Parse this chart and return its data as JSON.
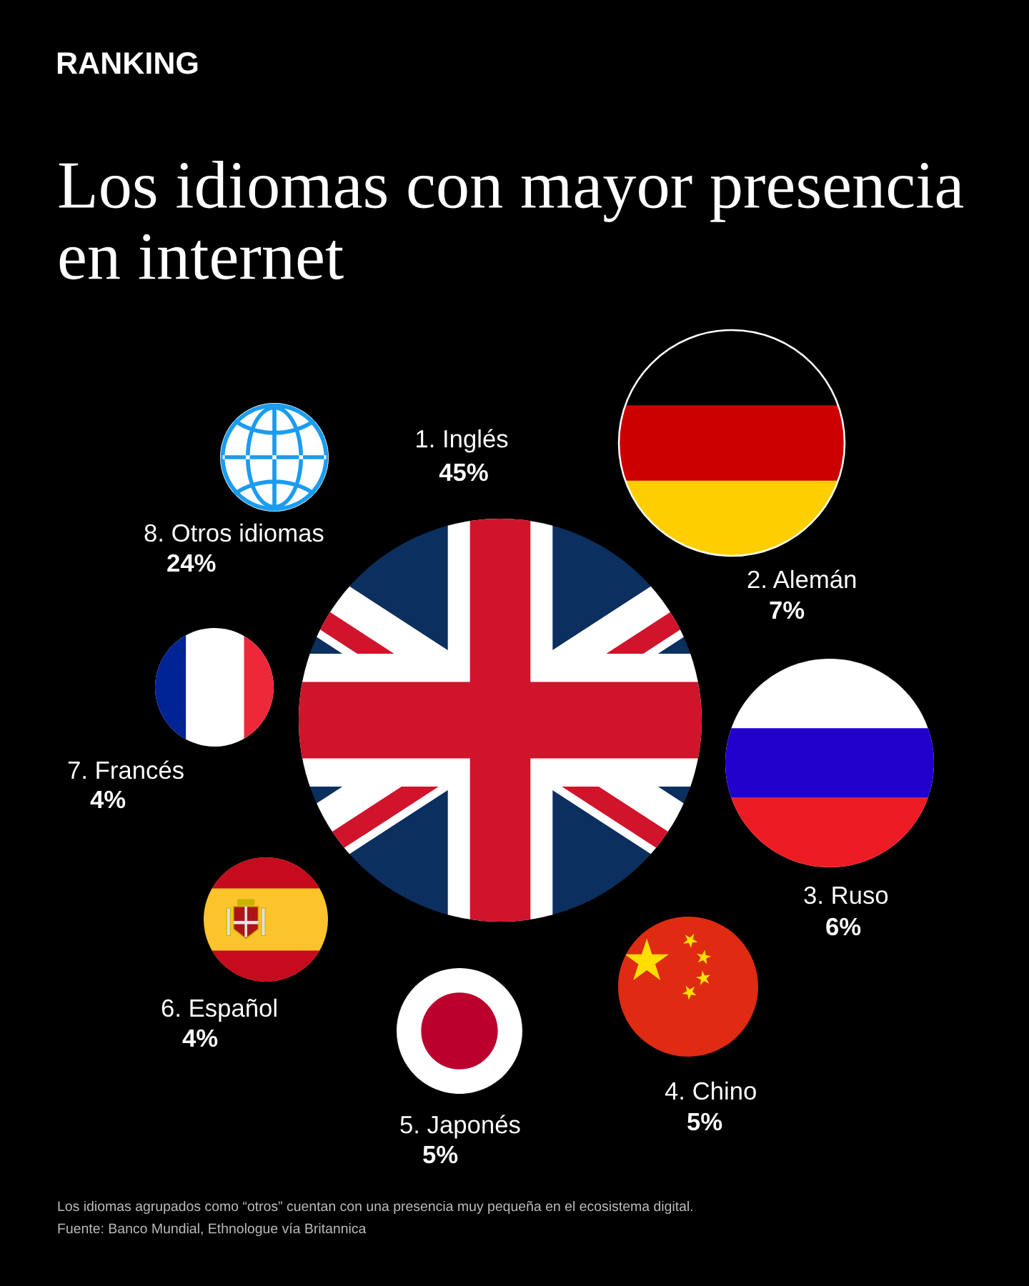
{
  "chart_data": {
    "type": "other",
    "subtitle": "RANKING",
    "title": "Los idiomas con mayor presencia\nen internet",
    "categories": [
      "1. Inglés",
      "2. Alemán",
      "3. Ruso",
      "4. Chino",
      "5. Japonés",
      "6. Español",
      "7. Francés",
      "8. Otros idiomas"
    ],
    "values": [
      45,
      7,
      6,
      5,
      5,
      4,
      4,
      24
    ],
    "value_labels": [
      "45%",
      "7%",
      "6%",
      "5%",
      "5%",
      "4%",
      "4%",
      "24%"
    ],
    "colors": [
      "#0b2f5e",
      "#cc0000",
      "#ffffff",
      "#de2b12",
      "#ffffff",
      "#fcc42c",
      "#ffffff",
      "#ffffff"
    ],
    "annotations": [
      "Los idiomas agrupados como “otros” cuentan con una presencia muy pequeña en el ecosistema digital.",
      "Fuente: Banco Mundial, Ethnologue vía Britannica"
    ]
  }
}
